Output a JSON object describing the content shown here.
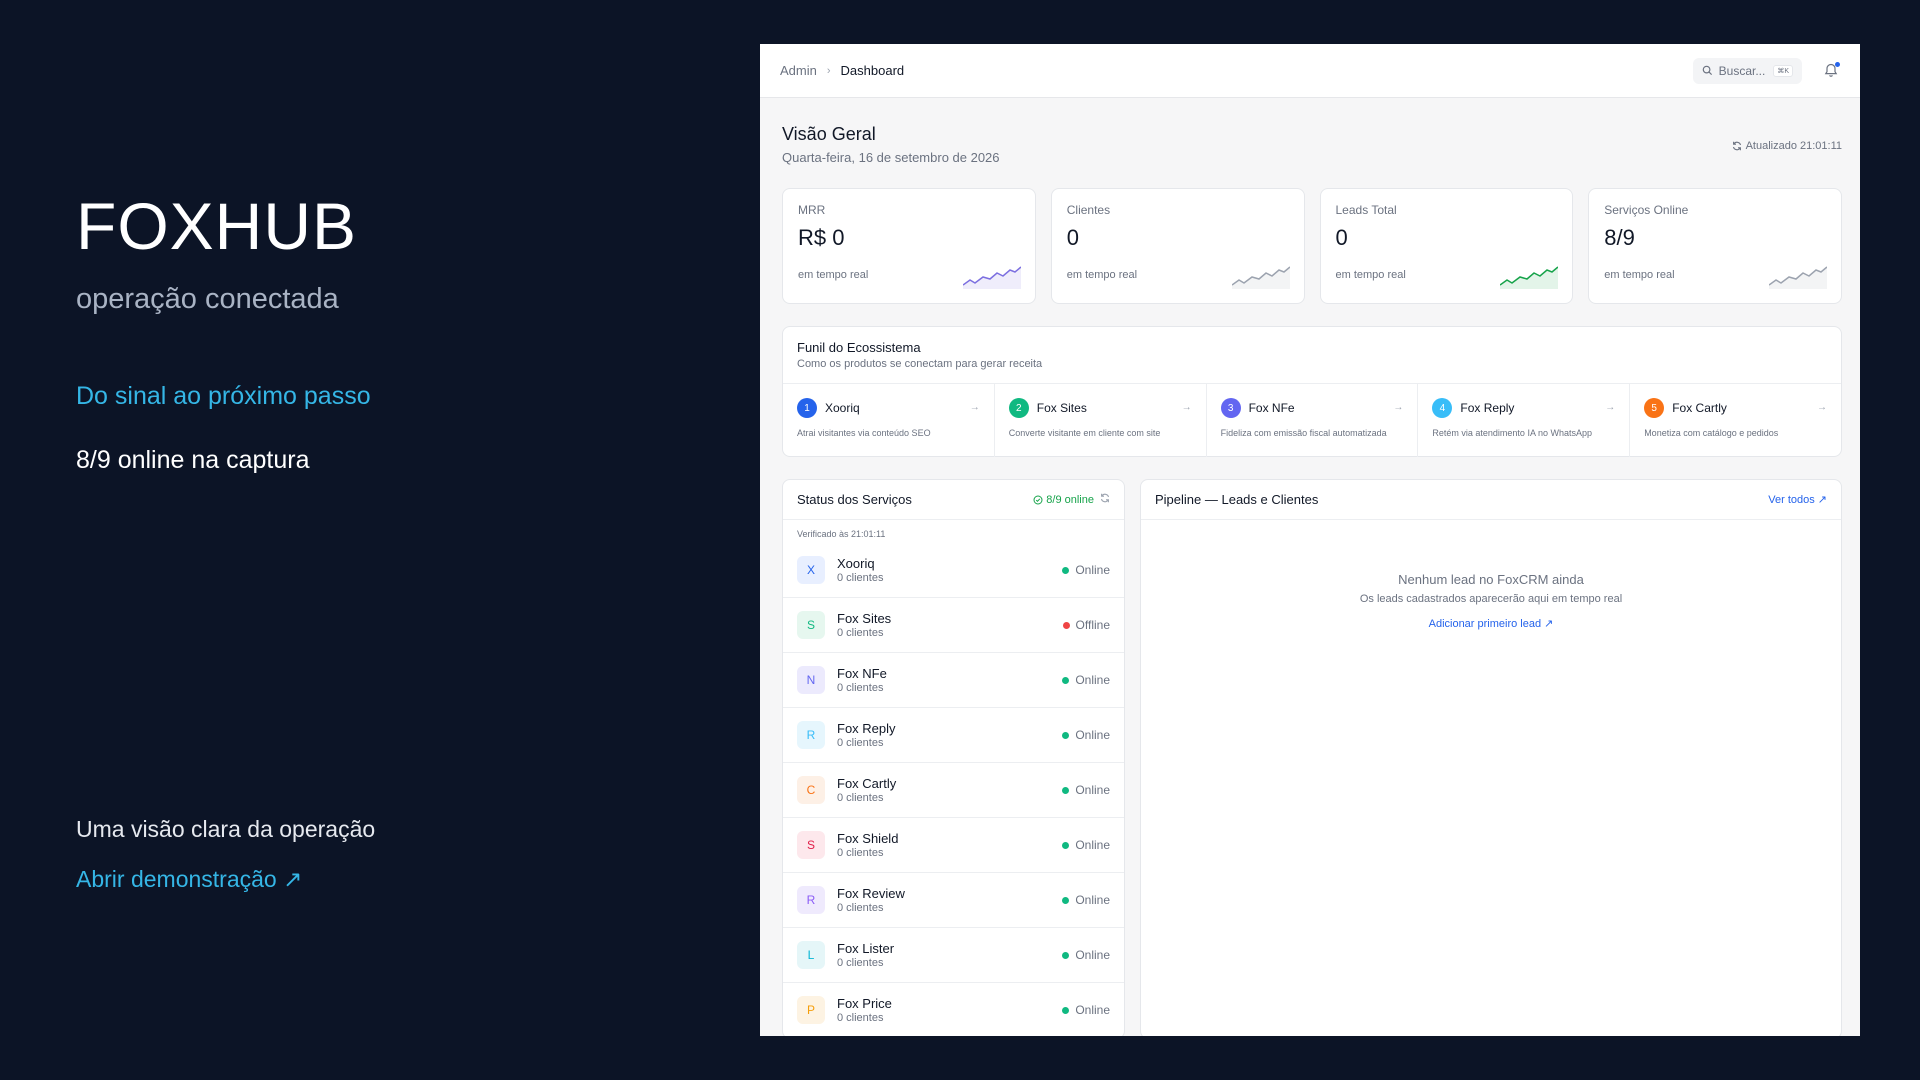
{
  "promo": {
    "brand": "FOXHUB",
    "tagline": "operação conectada",
    "headline": "Do sinal ao próximo passo",
    "status": "8/9 online na captura",
    "footer_text": "Uma visão clara da operação",
    "footer_link": "Abrir demonstração  ↗"
  },
  "topbar": {
    "breadcrumb_root": "Admin",
    "breadcrumb_sep": "›",
    "breadcrumb_current": "Dashboard",
    "search_placeholder": "Buscar...",
    "search_kbd": "⌘K"
  },
  "overview": {
    "title": "Visão Geral",
    "date": "Quarta-feira, 16 de setembro de 2026",
    "updated": "Atualizado 21:01:11"
  },
  "kpis": [
    {
      "label": "MRR",
      "value": "R$ 0",
      "sub": "em tempo real",
      "color": "#7c6fe0"
    },
    {
      "label": "Clientes",
      "value": "0",
      "sub": "em tempo real",
      "color": "#9ca3af"
    },
    {
      "label": "Leads Total",
      "value": "0",
      "sub": "em tempo real",
      "color": "#16a34a"
    },
    {
      "label": "Serviços Online",
      "value": "8/9",
      "sub": "em tempo real",
      "color": "#9ca3af"
    }
  ],
  "funnel": {
    "title": "Funil do Ecossistema",
    "subtitle": "Como os produtos se conectam para gerar receita",
    "steps": [
      {
        "num": "1",
        "name": "Xooriq",
        "desc": "Atrai visitantes via conteúdo SEO",
        "color": "#2563eb"
      },
      {
        "num": "2",
        "name": "Fox Sites",
        "desc": "Converte visitante em cliente com site",
        "color": "#10b981"
      },
      {
        "num": "3",
        "name": "Fox NFe",
        "desc": "Fideliza com emissão fiscal automatizada",
        "color": "#6366f1"
      },
      {
        "num": "4",
        "name": "Fox Reply",
        "desc": "Retém via atendimento IA no WhatsApp",
        "color": "#38bdf8"
      },
      {
        "num": "5",
        "name": "Fox Cartly",
        "desc": "Monetiza com catálogo e pedidos",
        "color": "#f97316"
      }
    ]
  },
  "services": {
    "title": "Status dos Serviços",
    "online_badge": "8/9 online",
    "verified": "Verificado às 21:01:11",
    "items": [
      {
        "initial": "X",
        "name": "Xooriq",
        "clients": "0 clientes",
        "status": "Online",
        "bg": "#e8efff",
        "fg": "#2563eb",
        "dot": "#10b981"
      },
      {
        "initial": "S",
        "name": "Fox Sites",
        "clients": "0 clientes",
        "status": "Offline",
        "bg": "#e6f7ef",
        "fg": "#10b981",
        "dot": "#ef4444"
      },
      {
        "initial": "N",
        "name": "Fox NFe",
        "clients": "0 clientes",
        "status": "Online",
        "bg": "#eceafd",
        "fg": "#6366f1",
        "dot": "#10b981"
      },
      {
        "initial": "R",
        "name": "Fox Reply",
        "clients": "0 clientes",
        "status": "Online",
        "bg": "#e6f6fd",
        "fg": "#38bdf8",
        "dot": "#10b981"
      },
      {
        "initial": "C",
        "name": "Fox Cartly",
        "clients": "0 clientes",
        "status": "Online",
        "bg": "#fdf0e6",
        "fg": "#f97316",
        "dot": "#10b981"
      },
      {
        "initial": "S",
        "name": "Fox Shield",
        "clients": "0 clientes",
        "status": "Online",
        "bg": "#fde8ec",
        "fg": "#e11d48",
        "dot": "#10b981"
      },
      {
        "initial": "R",
        "name": "Fox Review",
        "clients": "0 clientes",
        "status": "Online",
        "bg": "#efeafd",
        "fg": "#8b5cf6",
        "dot": "#10b981"
      },
      {
        "initial": "L",
        "name": "Fox Lister",
        "clients": "0 clientes",
        "status": "Online",
        "bg": "#e5f6f8",
        "fg": "#06b6d4",
        "dot": "#10b981"
      },
      {
        "initial": "P",
        "name": "Fox Price",
        "clients": "0 clientes",
        "status": "Online",
        "bg": "#fdf3e3",
        "fg": "#f59e0b",
        "dot": "#10b981"
      }
    ]
  },
  "pipeline": {
    "title": "Pipeline — Leads e Clientes",
    "view_all": "Ver todos ↗",
    "empty_title": "Nenhum lead no FoxCRM ainda",
    "empty_sub": "Os leads cadastrados aparecerão aqui em tempo real",
    "empty_cta": "Adicionar primeiro lead ↗"
  },
  "icons": {
    "search": "search-icon",
    "bell": "bell-icon",
    "refresh": "refresh-icon",
    "check_circle": "check-circle-icon"
  }
}
